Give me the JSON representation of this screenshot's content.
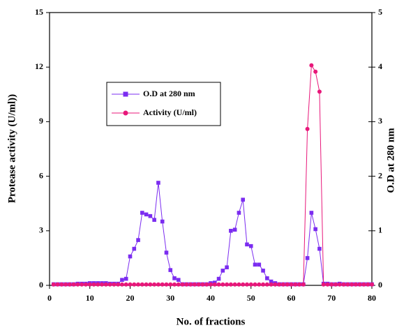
{
  "chart_data": {
    "type": "line",
    "x_label": "No. of fractions",
    "y_label": "Protease activity (U/ml))",
    "y2_label": "O.D at 280 nm",
    "x": [
      1,
      2,
      3,
      4,
      5,
      6,
      7,
      8,
      9,
      10,
      11,
      12,
      13,
      14,
      15,
      16,
      17,
      18,
      19,
      20,
      21,
      22,
      23,
      24,
      25,
      26,
      27,
      28,
      29,
      30,
      31,
      32,
      33,
      34,
      35,
      36,
      37,
      38,
      39,
      40,
      41,
      42,
      43,
      44,
      45,
      46,
      47,
      48,
      49,
      50,
      51,
      52,
      53,
      54,
      55,
      56,
      57,
      58,
      59,
      60,
      61,
      62,
      63,
      64,
      65,
      66,
      67,
      68,
      69,
      70,
      71,
      72,
      73,
      74,
      75,
      76,
      77,
      78,
      79,
      80
    ],
    "series": [
      {
        "name": "O.D at 280 nm",
        "color": "#7b2cf0",
        "marker": "square",
        "axis": "y2",
        "values": [
          0.02,
          0.02,
          0.02,
          0.02,
          0.02,
          0.02,
          0.03,
          0.03,
          0.03,
          0.04,
          0.04,
          0.04,
          0.04,
          0.04,
          0.03,
          0.03,
          0.03,
          0.1,
          0.12,
          0.53,
          0.67,
          0.83,
          1.33,
          1.3,
          1.27,
          1.2,
          1.88,
          1.17,
          0.6,
          0.28,
          0.13,
          0.1,
          0.02,
          0.02,
          0.02,
          0.02,
          0.02,
          0.02,
          0.02,
          0.04,
          0.05,
          0.12,
          0.27,
          0.33,
          1.0,
          1.02,
          1.33,
          1.57,
          0.75,
          0.72,
          0.38,
          0.38,
          0.27,
          0.13,
          0.07,
          0.04,
          0.02,
          0.02,
          0.02,
          0.02,
          0.02,
          0.02,
          0.02,
          0.5,
          1.33,
          1.03,
          0.67,
          0.03,
          0.03,
          0.02,
          0.02,
          0.03,
          0.02,
          0.02,
          0.02,
          0.02,
          0.02,
          0.02,
          0.02,
          0.02
        ]
      },
      {
        "name": "Activity (U/ml)",
        "color": "#e8177a",
        "marker": "circle",
        "axis": "y",
        "values": [
          0.05,
          0.05,
          0.05,
          0.05,
          0.05,
          0.05,
          0.05,
          0.05,
          0.05,
          0.05,
          0.05,
          0.05,
          0.05,
          0.05,
          0.05,
          0.05,
          0.05,
          0.05,
          0.05,
          0.05,
          0.05,
          0.05,
          0.05,
          0.05,
          0.05,
          0.05,
          0.05,
          0.05,
          0.05,
          0.05,
          0.05,
          0.05,
          0.05,
          0.05,
          0.05,
          0.05,
          0.05,
          0.05,
          0.05,
          0.05,
          0.05,
          0.05,
          0.05,
          0.05,
          0.05,
          0.05,
          0.05,
          0.05,
          0.05,
          0.05,
          0.05,
          0.05,
          0.05,
          0.05,
          0.05,
          0.05,
          0.05,
          0.05,
          0.05,
          0.05,
          0.05,
          0.05,
          0.05,
          8.6,
          12.1,
          11.75,
          10.65,
          0.05,
          0.05,
          0.05,
          0.05,
          0.05,
          0.05,
          0.05,
          0.05,
          0.05,
          0.05,
          0.05,
          0.05,
          0.05
        ]
      }
    ],
    "xlim": [
      0,
      80
    ],
    "xticks": [
      0,
      10,
      20,
      30,
      40,
      50,
      60,
      70,
      80
    ],
    "ylim": [
      0,
      15
    ],
    "yticks": [
      0,
      3,
      6,
      9,
      12,
      15
    ],
    "y2lim": [
      0,
      5
    ],
    "y2ticks": [
      0,
      1,
      2,
      3,
      4,
      5
    ],
    "grid": false
  }
}
